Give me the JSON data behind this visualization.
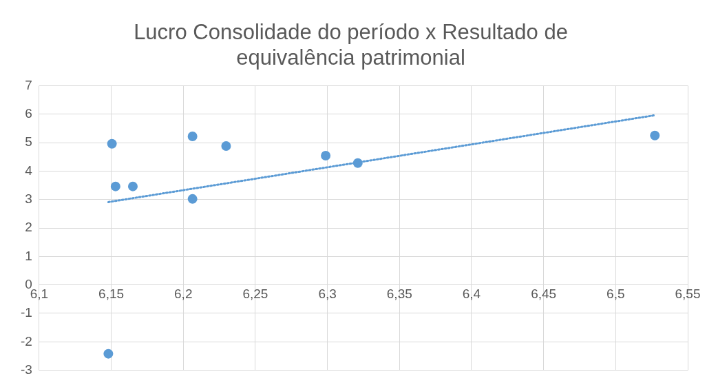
{
  "chart_data": {
    "type": "scatter",
    "title": [
      "Lucro Consolidade do período x Resultado de",
      "equivalência patrimonial"
    ],
    "x": [
      6.148,
      6.1505,
      6.153,
      6.165,
      6.2064,
      6.2064,
      6.2297,
      6.2988,
      6.3211,
      6.5272
    ],
    "series": [
      {
        "color": "#5b9bd5",
        "values": [
          -2.42,
          4.96,
          3.46,
          3.46,
          5.22,
          3.02,
          4.88,
          4.54,
          4.28,
          5.25
        ],
        "marker": "circle"
      },
      {
        "type": "line",
        "color": "#5b9bd5",
        "x": [
          6.148,
          6.527
        ],
        "values": [
          2.91,
          5.96
        ],
        "line_style": "dotted",
        "marker": "none"
      }
    ],
    "xlim": [
      6.1,
      6.55
    ],
    "xticks": [
      {
        "value": 6.1,
        "label": "6,1"
      },
      {
        "value": 6.15,
        "label": "6,15"
      },
      {
        "value": 6.2,
        "label": "6,2"
      },
      {
        "value": 6.25,
        "label": "6,25"
      },
      {
        "value": 6.3,
        "label": "6,3"
      },
      {
        "value": 6.35,
        "label": "6,35"
      },
      {
        "value": 6.4,
        "label": "6,4"
      },
      {
        "value": 6.45,
        "label": "6,45"
      },
      {
        "value": 6.5,
        "label": "6,5"
      },
      {
        "value": 6.55,
        "label": "6,55"
      }
    ],
    "ylim": [
      -3,
      7
    ],
    "yticks": [
      -3,
      -2,
      -1,
      0,
      1,
      2,
      3,
      4,
      5,
      6,
      7
    ],
    "grid": true,
    "legend": false
  }
}
